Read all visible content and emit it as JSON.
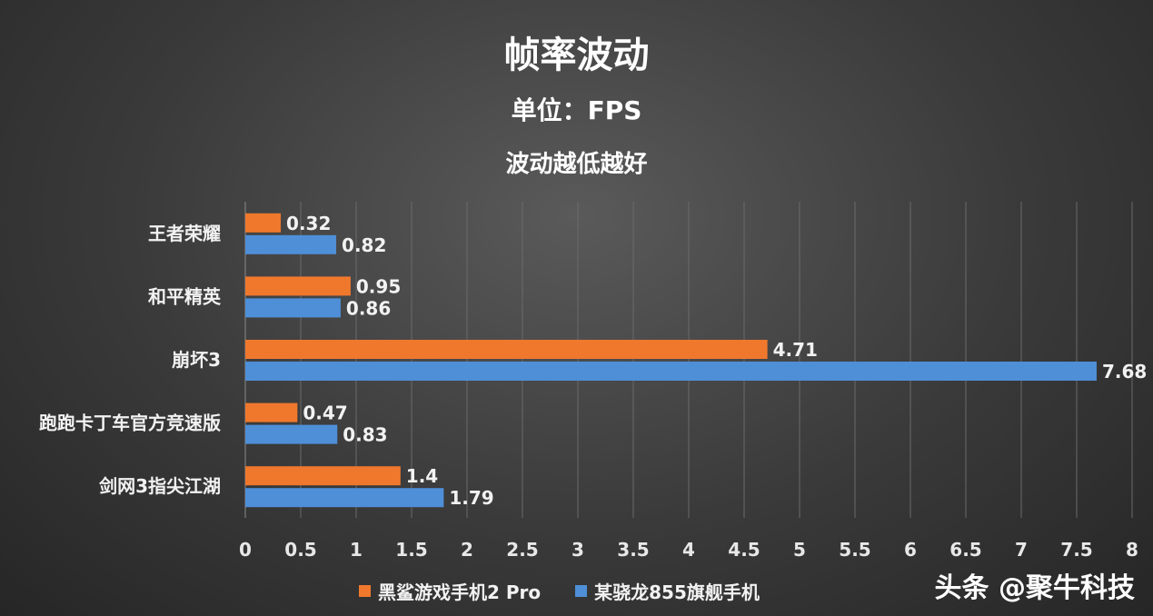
{
  "chart_data": {
    "type": "bar",
    "orientation": "horizontal",
    "title": "帧率波动",
    "subtitle": "单位：FPS",
    "note": "波动越低越好",
    "categories": [
      "王者荣耀",
      "和平精英",
      "崩坏3",
      "跑跑卡丁车官方竞速版",
      "剑网3指尖江湖"
    ],
    "series": [
      {
        "name": "黑鲨游戏手机2 Pro",
        "color": "#f0782d",
        "values": [
          0.32,
          0.95,
          4.71,
          0.47,
          1.4
        ]
      },
      {
        "name": "某骁龙855旗舰手机",
        "color": "#4e8fd8",
        "values": [
          0.82,
          0.86,
          7.68,
          0.83,
          1.79
        ]
      }
    ],
    "xlim": [
      0,
      8
    ],
    "xticks": [
      "0",
      "0.5",
      "1",
      "1.5",
      "2",
      "2.5",
      "3",
      "3.5",
      "4",
      "4.5",
      "5",
      "5.5",
      "6",
      "6.5",
      "7",
      "7.5",
      "8"
    ],
    "grid": true,
    "legend": "bottom"
  },
  "watermark": "头条 @聚牛科技"
}
